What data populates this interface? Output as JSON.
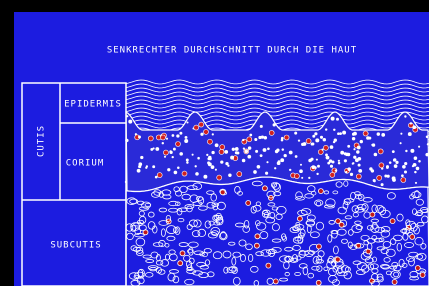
{
  "title": "SENKRECHTER DURCHSCHNITT DURCH DIE HAUT",
  "labels": {
    "cutis": "CUTIS",
    "epidermis": "EPIDERMIS",
    "corium": "CORIUM",
    "subcutis": "SUBCUTIS"
  }
}
